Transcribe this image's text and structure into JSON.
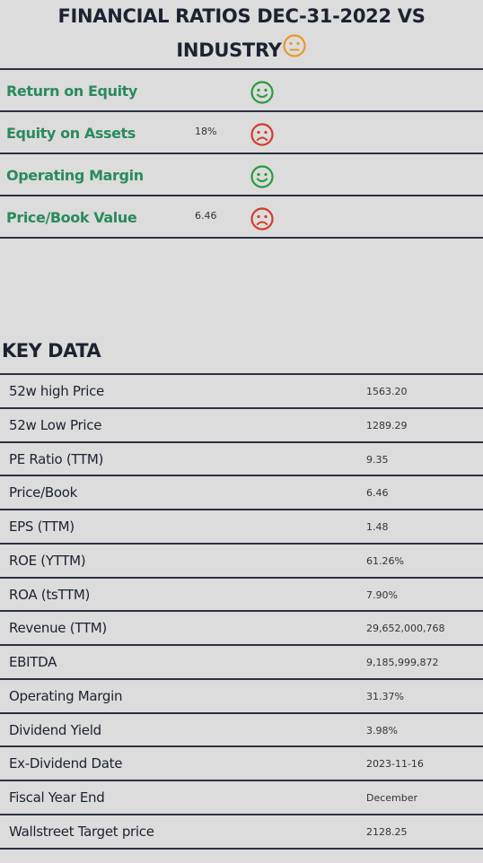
{
  "header": {
    "title_line1": "FINANCIAL RATIOS DEC-31-2022 VS",
    "title_line2": "INDUSTRY",
    "overall_icon": "neutral-face-icon",
    "overall_color": "#e8982a"
  },
  "ratios": [
    {
      "label": "Return on Equity",
      "value": "",
      "icon": "happy-face-icon",
      "status": "good"
    },
    {
      "label": "Equity on Assets",
      "value": "18%",
      "icon": "sad-face-icon",
      "status": "bad"
    },
    {
      "label": "Operating Margin",
      "value": "",
      "icon": "happy-face-icon",
      "status": "good"
    },
    {
      "label": "Price/Book Value",
      "value": "6.46",
      "icon": "sad-face-icon",
      "status": "bad"
    }
  ],
  "colors": {
    "good": "#2a9a3e",
    "bad": "#d63a2a",
    "neutral": "#e8982a",
    "ratio_label": "#2a8a5e"
  },
  "key_data": {
    "title": "KEY DATA",
    "rows": [
      {
        "label": "52w high Price",
        "value": "1563.20"
      },
      {
        "label": "52w Low Price",
        "value": "1289.29"
      },
      {
        "label": "PE Ratio (TTM)",
        "value": "9.35"
      },
      {
        "label": "Price/Book",
        "value": "6.46"
      },
      {
        "label": "EPS (TTM)",
        "value": "1.48"
      },
      {
        "label": "ROE (YTTM)",
        "value": "61.26%"
      },
      {
        "label": "ROA (tsTTM)",
        "value": "7.90%"
      },
      {
        "label": "Revenue (TTM)",
        "value": "29,652,000,768"
      },
      {
        "label": "EBITDA",
        "value": "9,185,999,872"
      },
      {
        "label": "Operating Margin",
        "value": "31.37%"
      },
      {
        "label": "Dividend Yield",
        "value": "3.98%"
      },
      {
        "label": "Ex-Dividend Date",
        "value": "2023-11-16"
      },
      {
        "label": "Fiscal Year End",
        "value": "December"
      },
      {
        "label": "Wallstreet Target price",
        "value": "2128.25"
      }
    ]
  }
}
